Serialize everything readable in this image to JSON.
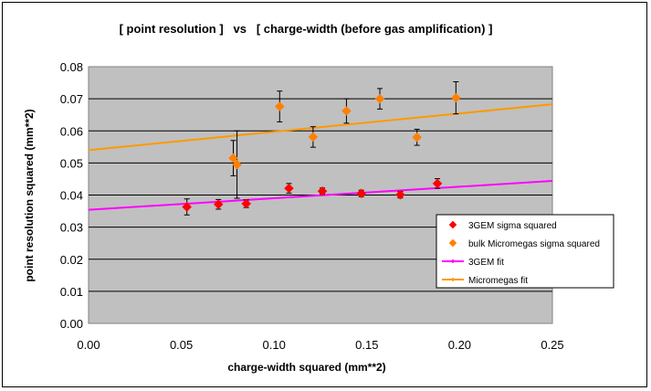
{
  "chart_data": {
    "type": "scatter",
    "title": "[ point resolution ]   vs   [ charge-width (before gas amplification) ]",
    "xlabel": "charge-width squared (mm**2)",
    "ylabel": "point resolution squared (mm**2)",
    "xlim": [
      0,
      0.25
    ],
    "ylim": [
      0,
      0.08
    ],
    "x_ticks": [
      "0.00",
      "0.05",
      "0.10",
      "0.15",
      "0.20",
      "0.25"
    ],
    "y_ticks": [
      "0.00",
      "0.01",
      "0.02",
      "0.03",
      "0.04",
      "0.05",
      "0.06",
      "0.07",
      "0.08"
    ],
    "grid": "horizontal",
    "legend_position": "right",
    "plot_background": "#c0c0c0",
    "series": [
      {
        "name": "3GEM sigma squared",
        "kind": "points",
        "marker": "diamond",
        "color": "#ff0000",
        "points": [
          {
            "x": 0.053,
            "y": 0.0363,
            "err": 0.0025
          },
          {
            "x": 0.07,
            "y": 0.0371,
            "err": 0.0015
          },
          {
            "x": 0.085,
            "y": 0.0373,
            "err": 0.0012
          },
          {
            "x": 0.108,
            "y": 0.0421,
            "err": 0.0015
          },
          {
            "x": 0.126,
            "y": 0.0412,
            "err": 0.001
          },
          {
            "x": 0.147,
            "y": 0.0405,
            "err": 0.001
          },
          {
            "x": 0.168,
            "y": 0.0401,
            "err": 0.001
          },
          {
            "x": 0.188,
            "y": 0.0436,
            "err": 0.0015
          }
        ]
      },
      {
        "name": "bulk Micromegas sigma squared",
        "kind": "points",
        "marker": "diamond",
        "color": "#ff8000",
        "points": [
          {
            "x": 0.078,
            "y": 0.0515,
            "err": 0.0055
          },
          {
            "x": 0.08,
            "y": 0.0495,
            "err": 0.0105
          },
          {
            "x": 0.103,
            "y": 0.0676,
            "err": 0.0048
          },
          {
            "x": 0.121,
            "y": 0.0581,
            "err": 0.0032
          },
          {
            "x": 0.139,
            "y": 0.0662,
            "err": 0.0038
          },
          {
            "x": 0.157,
            "y": 0.07,
            "err": 0.0032
          },
          {
            "x": 0.177,
            "y": 0.058,
            "err": 0.0025
          },
          {
            "x": 0.198,
            "y": 0.0703,
            "err": 0.005
          }
        ]
      },
      {
        "name": "3GEM fit",
        "kind": "line",
        "color": "#ff00ff",
        "x": [
          0.0,
          0.25
        ],
        "y": [
          0.0354,
          0.0444
        ]
      },
      {
        "name": "Micromegas fit",
        "kind": "line",
        "color": "#ff9900",
        "x": [
          0.0,
          0.25
        ],
        "y": [
          0.054,
          0.0683
        ]
      }
    ]
  }
}
